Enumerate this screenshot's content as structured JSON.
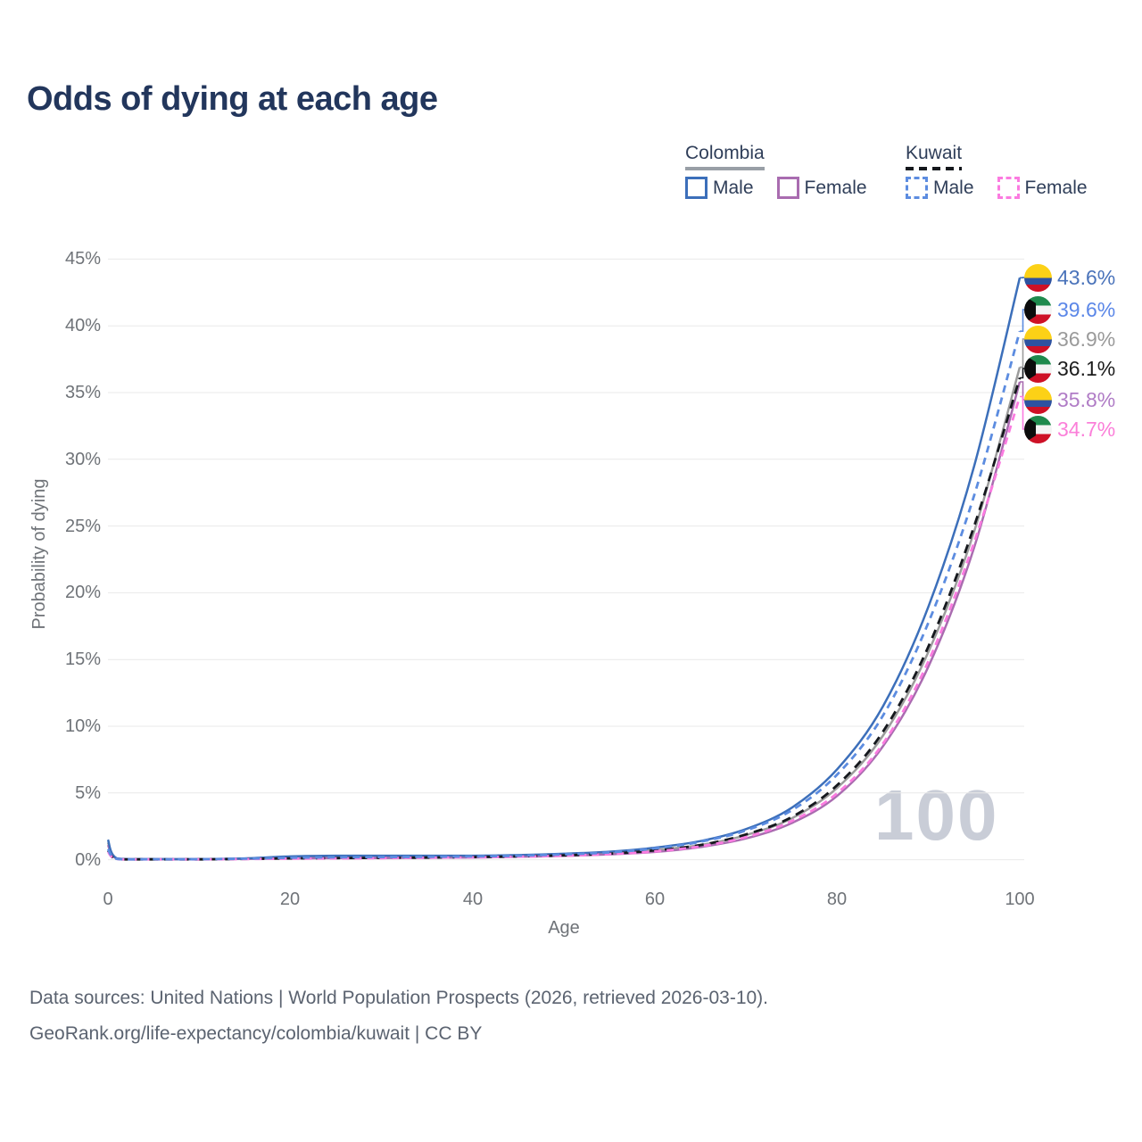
{
  "title": "Odds of dying at each age",
  "watermark": "100",
  "legend": {
    "groups": [
      {
        "title": "Colombia",
        "style": "solid",
        "items": [
          {
            "label": "Male"
          },
          {
            "label": "Female"
          }
        ]
      },
      {
        "title": "Kuwait",
        "style": "dashed",
        "items": [
          {
            "label": "Male"
          },
          {
            "label": "Female"
          }
        ]
      }
    ]
  },
  "axes": {
    "y": {
      "title": "Probability of dying",
      "labels": [
        "45%",
        "40%",
        "35%",
        "30%",
        "25%",
        "20%",
        "15%",
        "10%",
        "5%",
        "0%"
      ]
    },
    "x": {
      "title": "Age",
      "labels": [
        "0",
        "20",
        "40",
        "60",
        "80",
        "100"
      ]
    }
  },
  "end_labels": [
    {
      "series": 0,
      "flag": "colombia",
      "text": "43.6%",
      "value_pct": 43.6,
      "color": "#4a73ba"
    },
    {
      "series": 1,
      "flag": "kuwait",
      "text": "39.6%",
      "value_pct": 39.6,
      "color": "#5b87e8"
    },
    {
      "series": 2,
      "flag": "colombia",
      "text": "36.9%",
      "value_pct": 36.9,
      "color": "#9a9a9a"
    },
    {
      "series": 3,
      "flag": "kuwait",
      "text": "36.1%",
      "value_pct": 36.1,
      "color": "#1c1c1c"
    },
    {
      "series": 4,
      "flag": "colombia",
      "text": "35.8%",
      "value_pct": 35.8,
      "color": "#b07cc6"
    },
    {
      "series": 5,
      "flag": "kuwait",
      "text": "34.7%",
      "value_pct": 34.7,
      "color": "#fb7fd9"
    }
  ],
  "footer": {
    "line1": "Data sources: United Nations | World Population Prospects (2026, retrieved 2026-03-10).",
    "line2": "GeoRank.org/life-expectancy/colombia/kuwait | CC BY"
  },
  "chart_data": {
    "type": "line",
    "title": "Odds of dying at each age",
    "xlabel": "Age",
    "ylabel": "Probability of dying",
    "xlim": [
      0,
      100
    ],
    "ylim": [
      0,
      45
    ],
    "x_ticks": [
      0,
      20,
      40,
      60,
      80,
      100
    ],
    "y_ticks": [
      0,
      5,
      10,
      15,
      20,
      25,
      30,
      35,
      40,
      45
    ],
    "grid": "horizontal",
    "legend_position": "top-right",
    "unit": "percent",
    "ages": [
      0,
      1,
      5,
      10,
      15,
      20,
      25,
      30,
      35,
      40,
      45,
      50,
      55,
      60,
      65,
      70,
      75,
      80,
      85,
      90,
      95,
      100
    ],
    "series": [
      {
        "name": "Colombia Male",
        "country": "Colombia",
        "sex": "male",
        "line": "solid",
        "color": "#3c6fba",
        "values": [
          1.5,
          0.1,
          0.05,
          0.05,
          0.1,
          0.25,
          0.3,
          0.3,
          0.3,
          0.3,
          0.35,
          0.45,
          0.6,
          0.9,
          1.4,
          2.3,
          3.9,
          6.8,
          11.5,
          19.0,
          29.5,
          43.6
        ]
      },
      {
        "name": "Kuwait Male",
        "country": "Kuwait",
        "sex": "male",
        "line": "dashed",
        "color": "#5c8ce0",
        "values": [
          0.8,
          0.06,
          0.04,
          0.04,
          0.08,
          0.15,
          0.18,
          0.2,
          0.22,
          0.25,
          0.3,
          0.4,
          0.55,
          0.85,
          1.35,
          2.2,
          3.7,
          6.4,
          10.8,
          17.8,
          27.3,
          39.6
        ]
      },
      {
        "name": "Colombia Both sexes",
        "country": "Colombia",
        "sex": "all",
        "line": "solid",
        "color": "#9c9c9c",
        "values": [
          1.3,
          0.09,
          0.04,
          0.04,
          0.08,
          0.18,
          0.2,
          0.2,
          0.22,
          0.24,
          0.28,
          0.36,
          0.5,
          0.72,
          1.1,
          1.85,
          3.1,
          5.4,
          9.3,
          15.6,
          24.6,
          36.9
        ]
      },
      {
        "name": "Kuwait Both sexes",
        "country": "Kuwait",
        "sex": "all",
        "line": "dashed",
        "color": "#15181d",
        "values": [
          0.7,
          0.05,
          0.03,
          0.03,
          0.06,
          0.1,
          0.12,
          0.14,
          0.16,
          0.2,
          0.25,
          0.33,
          0.45,
          0.7,
          1.1,
          1.9,
          3.2,
          5.6,
          9.6,
          16.0,
          25.0,
          36.1
        ]
      },
      {
        "name": "Colombia Female",
        "country": "Colombia",
        "sex": "female",
        "line": "solid",
        "color": "#a96cb0",
        "values": [
          1.1,
          0.08,
          0.04,
          0.04,
          0.06,
          0.1,
          0.12,
          0.13,
          0.15,
          0.17,
          0.22,
          0.29,
          0.4,
          0.58,
          0.95,
          1.6,
          2.75,
          4.8,
          8.5,
          14.5,
          23.4,
          35.8
        ]
      },
      {
        "name": "Kuwait Female",
        "country": "Kuwait",
        "sex": "female",
        "line": "dashed",
        "color": "#fb7be0",
        "values": [
          0.6,
          0.05,
          0.03,
          0.03,
          0.05,
          0.08,
          0.1,
          0.12,
          0.15,
          0.18,
          0.23,
          0.3,
          0.42,
          0.62,
          1.0,
          1.7,
          2.9,
          5.0,
          8.7,
          14.9,
          23.8,
          34.7
        ]
      }
    ]
  }
}
